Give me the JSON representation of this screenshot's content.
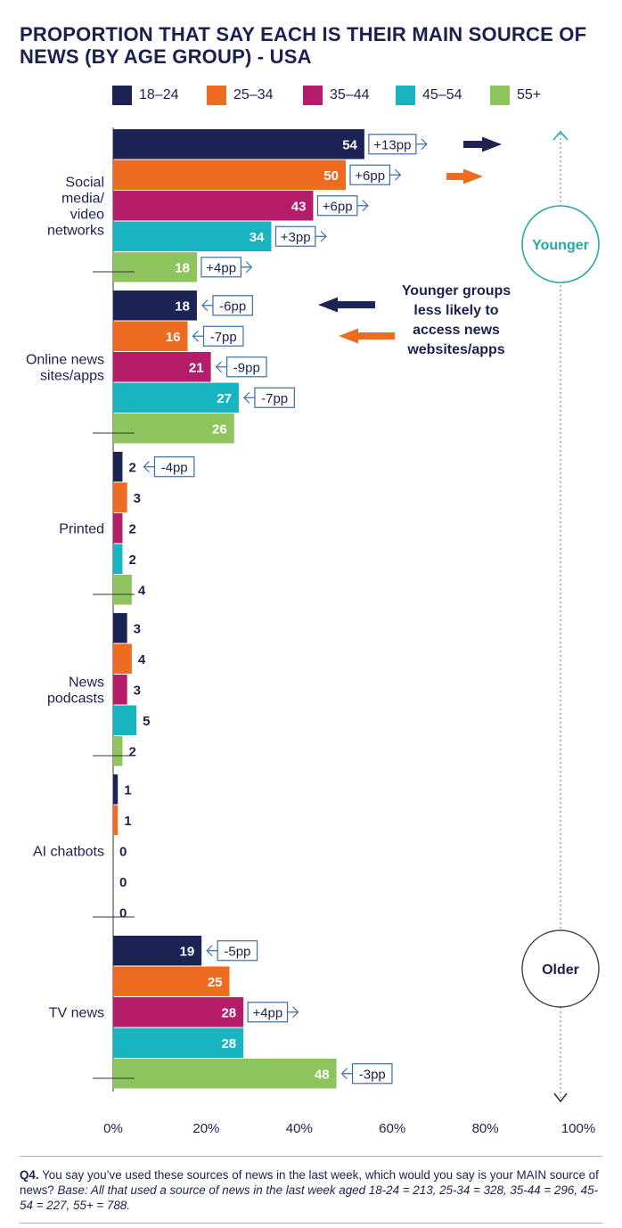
{
  "title": "PROPORTION THAT SAY EACH IS THEIR MAIN SOURCE OF NEWS (BY AGE GROUP) - USA",
  "colors": {
    "18-24": "#1b2455",
    "25-34": "#ee6b22",
    "35-44": "#b51d6a",
    "45-54": "#19b4c2",
    "55+": "#8ec45e",
    "text": "#1a2150",
    "annotation_border": "#3a6ea5",
    "younger_older": "#25a8a5"
  },
  "chart_data": {
    "type": "bar",
    "orientation": "horizontal",
    "title": "PROPORTION THAT SAY EACH IS THEIR MAIN SOURCE OF NEWS (BY AGE GROUP) - USA",
    "categories": [
      [
        "Social",
        "media/",
        "video",
        "networks"
      ],
      [
        "Online news",
        "sites/apps"
      ],
      [
        "Printed"
      ],
      [
        "News",
        "podcasts"
      ],
      [
        "AI chatbots"
      ],
      [
        "TV news"
      ]
    ],
    "series": [
      {
        "name": "18–24",
        "values": [
          54,
          18,
          2,
          3,
          1,
          19
        ],
        "changes": [
          "+13pp",
          "-6pp",
          "-4pp",
          "",
          "",
          "-5pp"
        ]
      },
      {
        "name": "25–34",
        "values": [
          50,
          16,
          3,
          4,
          1,
          25
        ],
        "changes": [
          "+6pp",
          "-7pp",
          "",
          "",
          "",
          ""
        ]
      },
      {
        "name": "35–44",
        "values": [
          43,
          21,
          2,
          3,
          0,
          28
        ],
        "changes": [
          "+6pp",
          "-9pp",
          "",
          "",
          "",
          "+4pp"
        ]
      },
      {
        "name": "45–54",
        "values": [
          34,
          27,
          2,
          5,
          0,
          28
        ],
        "changes": [
          "+3pp",
          "-7pp",
          "",
          "",
          "",
          ""
        ]
      },
      {
        "name": "55+",
        "values": [
          18,
          26,
          4,
          2,
          0,
          48
        ],
        "changes": [
          "+4pp",
          "",
          "",
          "",
          "",
          "-3pp"
        ]
      }
    ],
    "xlim": [
      0,
      100
    ],
    "xticks": [
      "0%",
      "20%",
      "40%",
      "60%",
      "80%",
      "100%"
    ],
    "legend_position": "top",
    "grid": false,
    "annotations": {
      "younger_groups": [
        "Younger groups",
        "less likely to",
        "access news",
        "websites/apps"
      ],
      "younger": "Younger",
      "older": "Older"
    }
  },
  "footnote": {
    "question": "Q4.",
    "text": " You say you’ve used these sources of news in the last week, which would you say is your MAIN source of news? ",
    "base": "Base: All that used a source of news in the last week aged 18-24 = 213, 25-34 = 328, 35-44 = 296, 45-54 = 227, 55+ = 788."
  }
}
